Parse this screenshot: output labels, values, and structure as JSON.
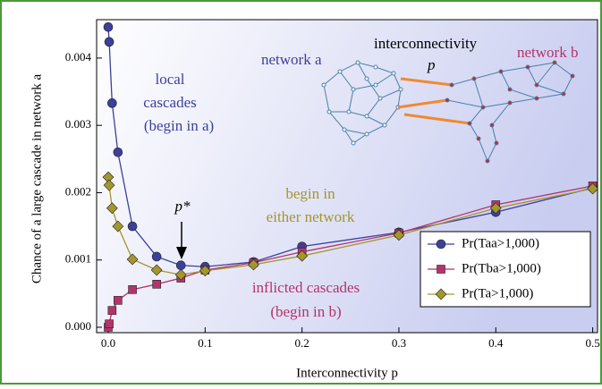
{
  "chart_data": {
    "type": "line",
    "x_label": "Interconnectivity p",
    "y_label": "Chance of a large cascade in network a",
    "xlim": [
      -0.012,
      0.505
    ],
    "ylim": [
      -8e-05,
      0.00457
    ],
    "xticks": [
      {
        "value": 0,
        "label": "0.0"
      },
      0.1,
      0.2,
      0.3,
      0.4,
      0.5
    ],
    "yticks": [
      {
        "value": 0,
        "label": "0.000"
      },
      0.001,
      0.002,
      0.003,
      0.004
    ],
    "x": [
      0,
      0.001,
      0.004,
      0.01,
      0.025,
      0.05,
      0.075,
      0.1,
      0.15,
      0.2,
      0.3,
      0.4,
      0.5
    ],
    "series": [
      {
        "name": "Pr(Taa>1,000)",
        "color": "#3d3f9c",
        "marker": "circle",
        "values": [
          0.00446,
          0.00424,
          0.00333,
          0.0026,
          0.0015,
          0.00105,
          0.00092,
          0.0009,
          0.00097,
          0.0012,
          0.00141,
          0.00171,
          0.00207
        ]
      },
      {
        "name": "Pr(Tba>1,000)",
        "color": "#b5336b",
        "marker": "square",
        "values": [
          0.0,
          5e-05,
          0.00025,
          0.0004,
          0.00056,
          0.00064,
          0.00073,
          0.00085,
          0.00096,
          0.00112,
          0.0014,
          0.00182,
          0.0021
        ]
      },
      {
        "name": "Pr(Ta>1,000)",
        "color": "#a3962c",
        "marker": "diamond",
        "values": [
          0.00223,
          0.00211,
          0.00177,
          0.0015,
          0.00101,
          0.00085,
          0.00078,
          0.00084,
          0.00093,
          0.00106,
          0.00137,
          0.00177,
          0.00206
        ]
      }
    ],
    "annotations": {
      "local": [
        "local",
        "cascades",
        "(begin in a)"
      ],
      "either": [
        "begin in",
        "either network"
      ],
      "inflicted": [
        "inflicted cascades",
        "(begin in b)"
      ],
      "pstar": "p*",
      "network_a": "network a",
      "network_b": "network b",
      "interconnectivity": "interconnectivity",
      "p": "p"
    }
  }
}
